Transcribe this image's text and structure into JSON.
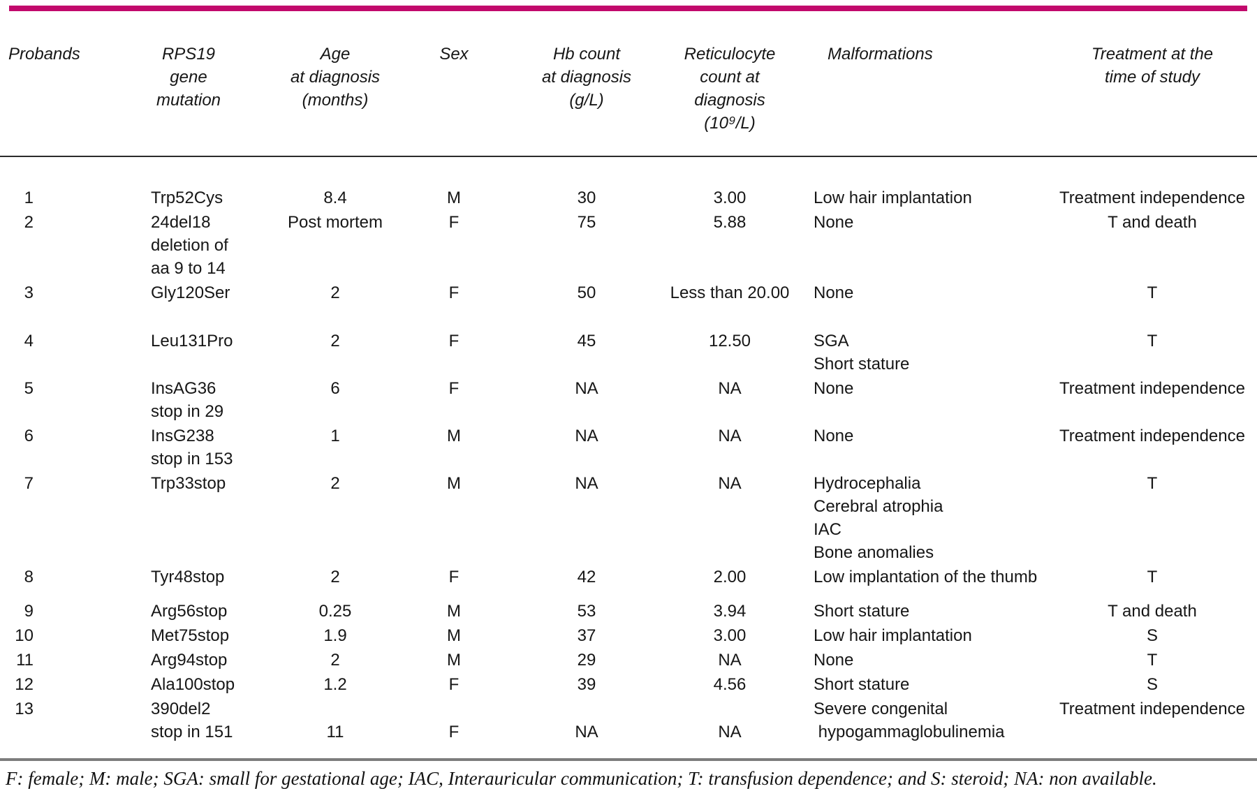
{
  "accent_color": "#c2096c",
  "rule_color": "#7d7d7d",
  "table": {
    "column_names": [
      "probands",
      "rps19-gene-mutation",
      "age-at-diagnosis",
      "sex",
      "hb-count",
      "reticulocyte-count",
      "malformations",
      "treatment"
    ],
    "headers": [
      [
        "Probands"
      ],
      [
        "RPS19",
        "gene",
        "mutation"
      ],
      [
        "Age",
        "at diagnosis",
        "(months)"
      ],
      [
        "Sex"
      ],
      [
        "Hb count",
        "at diagnosis",
        "(g/L)"
      ],
      [
        "Reticulocyte",
        "count at",
        "diagnosis",
        "(10⁹/L)"
      ],
      [
        "Malformations"
      ],
      [
        "Treatment at the",
        "time of study"
      ]
    ],
    "rows": [
      {
        "cells": [
          [
            "1"
          ],
          [
            "Trp52Cys"
          ],
          [
            "8.4"
          ],
          [
            "M"
          ],
          [
            "30"
          ],
          [
            "3.00"
          ],
          [
            "Low hair implantation"
          ],
          [
            "Treatment independence"
          ]
        ]
      },
      {
        "cells": [
          [
            "2"
          ],
          [
            "24del18",
            "deletion of",
            "aa 9 to 14"
          ],
          [
            "Post mortem"
          ],
          [
            "F"
          ],
          [
            "75"
          ],
          [
            "5.88"
          ],
          [
            "None"
          ],
          [
            "T and death"
          ]
        ]
      },
      {
        "cells": [
          [
            "3"
          ],
          [
            "Gly120Ser"
          ],
          [
            "2"
          ],
          [
            "F"
          ],
          [
            "50"
          ],
          [
            "Less than 20.00"
          ],
          [
            "None"
          ],
          [
            "T"
          ]
        ]
      },
      {
        "cells": [
          [
            "4"
          ],
          [
            "Leu131Pro"
          ],
          [
            "2"
          ],
          [
            "F"
          ],
          [
            "45"
          ],
          [
            "12.50"
          ],
          [
            "SGA",
            "Short stature"
          ],
          [
            "T"
          ]
        ]
      },
      {
        "cells": [
          [
            "5"
          ],
          [
            "InsAG36",
            "stop in 29"
          ],
          [
            "6"
          ],
          [
            "F"
          ],
          [
            "NA"
          ],
          [
            "NA"
          ],
          [
            "None"
          ],
          [
            "Treatment independence"
          ]
        ]
      },
      {
        "cells": [
          [
            "6"
          ],
          [
            "InsG238",
            "stop in 153"
          ],
          [
            "1"
          ],
          [
            "M"
          ],
          [
            "NA"
          ],
          [
            "NA"
          ],
          [
            "None"
          ],
          [
            "Treatment independence"
          ]
        ]
      },
      {
        "cells": [
          [
            "7"
          ],
          [
            "Trp33stop"
          ],
          [
            "2"
          ],
          [
            "M"
          ],
          [
            "NA"
          ],
          [
            "NA"
          ],
          [
            "Hydrocephalia",
            "Cerebral atrophia",
            "IAC",
            "Bone anomalies"
          ],
          [
            "T"
          ]
        ]
      },
      {
        "cells": [
          [
            "8"
          ],
          [
            "Tyr48stop"
          ],
          [
            "2"
          ],
          [
            "F"
          ],
          [
            "42"
          ],
          [
            "2.00"
          ],
          [
            "Low implantation of the thumb"
          ],
          [
            "T"
          ]
        ]
      },
      {
        "cells": [
          [
            "9"
          ],
          [
            "Arg56stop"
          ],
          [
            "0.25"
          ],
          [
            "M"
          ],
          [
            "53"
          ],
          [
            "3.94"
          ],
          [
            "Short stature"
          ],
          [
            "T and death"
          ]
        ]
      },
      {
        "cells": [
          [
            "10"
          ],
          [
            "Met75stop"
          ],
          [
            "1.9"
          ],
          [
            "M"
          ],
          [
            "37"
          ],
          [
            "3.00"
          ],
          [
            "Low hair implantation"
          ],
          [
            "S"
          ]
        ]
      },
      {
        "cells": [
          [
            "11"
          ],
          [
            "Arg94stop"
          ],
          [
            "2"
          ],
          [
            "M"
          ],
          [
            "29"
          ],
          [
            "NA"
          ],
          [
            "None"
          ],
          [
            "T"
          ]
        ]
      },
      {
        "cells": [
          [
            "12"
          ],
          [
            "Ala100stop"
          ],
          [
            "1.2"
          ],
          [
            "F"
          ],
          [
            "39"
          ],
          [
            "4.56"
          ],
          [
            "Short stature"
          ],
          [
            "S"
          ]
        ]
      },
      {
        "cells": [
          [
            "13"
          ],
          [
            "390del2",
            "stop in 151"
          ],
          [
            "",
            "11"
          ],
          [
            "",
            "F"
          ],
          [
            "",
            "NA"
          ],
          [
            "",
            "NA"
          ],
          [
            "Severe congenital",
            " hypogammaglobulinemia"
          ],
          [
            "Treatment independence"
          ]
        ]
      }
    ]
  },
  "footnote": "F: female; M: male; SGA: small for gestational age; IAC, Interauricular communication; T: transfusion dependence; and S: steroid; NA: non available."
}
